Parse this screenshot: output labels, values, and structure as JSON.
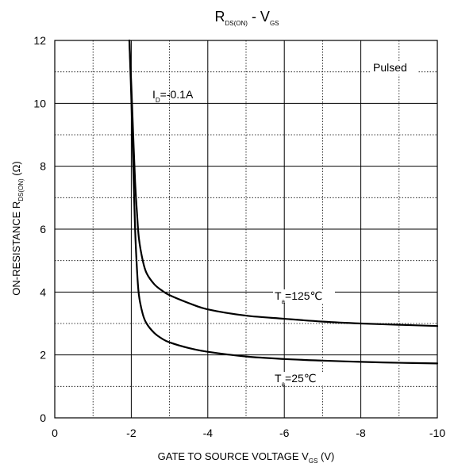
{
  "chart_data": {
    "type": "line",
    "title": {
      "main": "R",
      "sub1": "DS(ON)",
      "mid": " - V",
      "sub2": "GS"
    },
    "xlabel": {
      "main": "GATE TO SOURCE VOLTAGE V",
      "sub": "GS",
      "unit": " (V)"
    },
    "ylabel": {
      "main": "ON-RESISTANCE R",
      "sub": "DS(ON)",
      "unit": " (Ω)"
    },
    "xlim": [
      0,
      -10
    ],
    "ylim": [
      0,
      12
    ],
    "x_ticks": [
      "0",
      "-2",
      "-4",
      "-6",
      "-8",
      "-10"
    ],
    "x_tick_values": [
      0,
      -2,
      -4,
      -6,
      -8,
      -10
    ],
    "y_ticks": [
      "0",
      "2",
      "4",
      "6",
      "8",
      "10",
      "12"
    ],
    "y_tick_values": [
      0,
      2,
      4,
      6,
      8,
      10,
      12
    ],
    "grid": {
      "major": true,
      "minor_dotted": true
    },
    "series": [
      {
        "condition": {
          "main": "T",
          "sub": "a",
          "rest": "=125℃"
        },
        "x": [
          -1.95,
          -2.0,
          -2.05,
          -2.1,
          -2.15,
          -2.2,
          -2.3,
          -2.4,
          -2.6,
          -2.8,
          -3.0,
          -3.5,
          -4.0,
          -5.0,
          -6.0,
          -7.0,
          -8.0,
          -9.0,
          -10.0
        ],
        "values": [
          12.0,
          10.6,
          9.0,
          7.5,
          6.5,
          5.7,
          5.0,
          4.6,
          4.25,
          4.05,
          3.9,
          3.65,
          3.45,
          3.25,
          3.15,
          3.06,
          3.0,
          2.96,
          2.92
        ]
      },
      {
        "condition": {
          "main": "T",
          "sub": "a",
          "rest": "=25℃"
        },
        "x": [
          -1.95,
          -2.0,
          -2.05,
          -2.1,
          -2.15,
          -2.2,
          -2.3,
          -2.4,
          -2.6,
          -2.8,
          -3.0,
          -3.5,
          -4.0,
          -5.0,
          -6.0,
          -7.0,
          -8.0,
          -9.0,
          -10.0
        ],
        "values": [
          12.0,
          10.2,
          8.0,
          6.0,
          4.7,
          3.9,
          3.3,
          3.0,
          2.7,
          2.52,
          2.4,
          2.22,
          2.1,
          1.95,
          1.87,
          1.82,
          1.78,
          1.75,
          1.73
        ]
      }
    ],
    "annotations": {
      "current": {
        "main": "I",
        "sub": "D",
        "rest": "=-0.1A"
      },
      "pulsed": "Pulsed"
    },
    "colors": {
      "line": "#000000",
      "grid": "#000000",
      "background": "#ffffff"
    }
  }
}
